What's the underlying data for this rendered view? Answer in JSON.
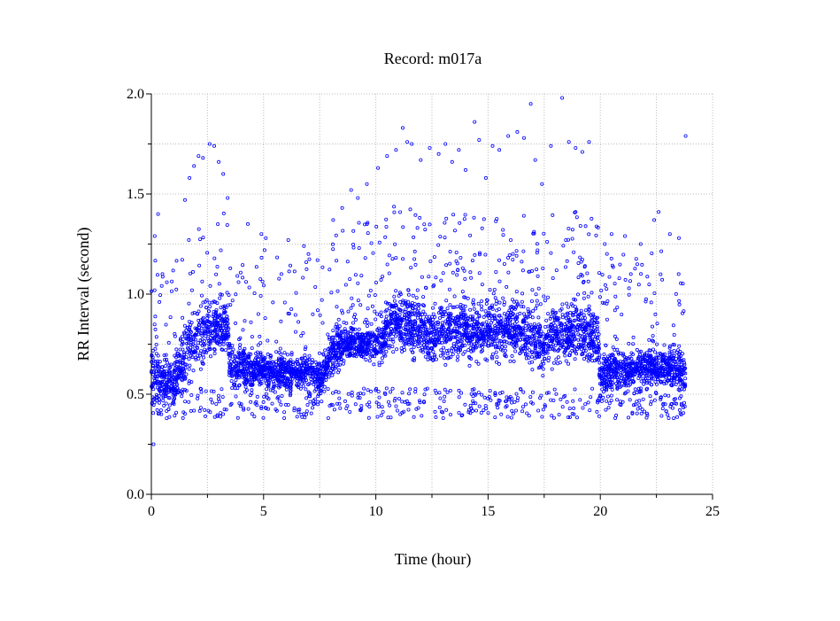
{
  "chart_data": {
    "type": "scatter",
    "title": "Record:  m017a",
    "xlabel": "Time (hour)",
    "ylabel": "RR Interval (second)",
    "xlim": [
      0,
      25
    ],
    "ylim": [
      0,
      2.0
    ],
    "xticks": [
      "0",
      "5",
      "10",
      "15",
      "20",
      "25"
    ],
    "yticks": [
      "0.0",
      "0.5",
      "1.0",
      "1.5",
      "2.0"
    ],
    "grid": true,
    "marker": "open-circle",
    "color": "#0000ff",
    "trend": {
      "note": "median RR (s) vs hour with band half-width",
      "hour": [
        0.0,
        0.5,
        1.0,
        1.5,
        2.0,
        2.5,
        3.0,
        3.4,
        3.5,
        4.0,
        5.0,
        6.0,
        7.0,
        7.6,
        8.0,
        8.5,
        9.0,
        9.5,
        10.0,
        10.4,
        10.5,
        11.0,
        11.5,
        12.0,
        12.5,
        13.0,
        13.5,
        14.0,
        14.5,
        15.0,
        15.5,
        16.0,
        16.5,
        17.0,
        17.5,
        18.0,
        18.5,
        19.0,
        19.5,
        19.9,
        20.0,
        20.5,
        21.0,
        22.0,
        23.0,
        23.8
      ],
      "rr": [
        0.62,
        0.55,
        0.55,
        0.7,
        0.78,
        0.82,
        0.83,
        0.82,
        0.63,
        0.62,
        0.62,
        0.61,
        0.61,
        0.58,
        0.7,
        0.76,
        0.76,
        0.76,
        0.75,
        0.78,
        0.85,
        0.86,
        0.84,
        0.82,
        0.78,
        0.82,
        0.82,
        0.84,
        0.8,
        0.83,
        0.8,
        0.84,
        0.8,
        0.78,
        0.75,
        0.82,
        0.8,
        0.82,
        0.8,
        0.78,
        0.6,
        0.62,
        0.62,
        0.63,
        0.64,
        0.6
      ],
      "spread": [
        0.08,
        0.06,
        0.06,
        0.08,
        0.08,
        0.07,
        0.07,
        0.07,
        0.05,
        0.05,
        0.04,
        0.04,
        0.04,
        0.04,
        0.05,
        0.05,
        0.04,
        0.04,
        0.05,
        0.06,
        0.07,
        0.06,
        0.07,
        0.07,
        0.06,
        0.07,
        0.07,
        0.07,
        0.07,
        0.07,
        0.07,
        0.07,
        0.07,
        0.07,
        0.07,
        0.07,
        0.07,
        0.07,
        0.07,
        0.07,
        0.06,
        0.05,
        0.05,
        0.05,
        0.05,
        0.06
      ]
    },
    "outliers": [
      [
        0.1,
        0.25
      ],
      [
        0.15,
        1.29
      ],
      [
        0.3,
        1.4
      ],
      [
        1.5,
        1.47
      ],
      [
        1.7,
        1.58
      ],
      [
        1.9,
        1.64
      ],
      [
        2.1,
        1.69
      ],
      [
        2.3,
        1.68
      ],
      [
        2.6,
        1.75
      ],
      [
        2.8,
        1.74
      ],
      [
        3.0,
        1.66
      ],
      [
        3.2,
        1.6
      ],
      [
        3.4,
        1.48
      ],
      [
        4.3,
        1.35
      ],
      [
        4.9,
        1.3
      ],
      [
        5.1,
        1.28
      ],
      [
        6.1,
        1.27
      ],
      [
        6.8,
        1.24
      ],
      [
        7.0,
        1.2
      ],
      [
        7.4,
        1.17
      ],
      [
        8.1,
        1.37
      ],
      [
        8.5,
        1.43
      ],
      [
        8.9,
        1.52
      ],
      [
        9.2,
        1.48
      ],
      [
        9.6,
        1.55
      ],
      [
        10.1,
        1.63
      ],
      [
        10.5,
        1.69
      ],
      [
        10.9,
        1.72
      ],
      [
        11.2,
        1.83
      ],
      [
        11.4,
        1.76
      ],
      [
        11.6,
        1.75
      ],
      [
        12.0,
        1.67
      ],
      [
        12.4,
        1.73
      ],
      [
        12.8,
        1.7
      ],
      [
        13.1,
        1.75
      ],
      [
        13.4,
        1.66
      ],
      [
        13.7,
        1.72
      ],
      [
        14.0,
        1.62
      ],
      [
        14.4,
        1.86
      ],
      [
        14.6,
        1.77
      ],
      [
        14.9,
        1.58
      ],
      [
        15.2,
        1.74
      ],
      [
        15.5,
        1.72
      ],
      [
        15.9,
        1.79
      ],
      [
        16.3,
        1.81
      ],
      [
        16.6,
        1.78
      ],
      [
        16.9,
        1.95
      ],
      [
        17.1,
        1.67
      ],
      [
        17.4,
        1.55
      ],
      [
        17.8,
        1.74
      ],
      [
        18.3,
        1.98
      ],
      [
        18.6,
        1.76
      ],
      [
        18.9,
        1.73
      ],
      [
        19.2,
        1.71
      ],
      [
        19.5,
        1.76
      ],
      [
        20.2,
        1.25
      ],
      [
        20.5,
        1.3
      ],
      [
        21.1,
        1.29
      ],
      [
        21.8,
        1.25
      ],
      [
        22.4,
        1.37
      ],
      [
        22.6,
        1.41
      ],
      [
        23.1,
        1.3
      ],
      [
        23.5,
        1.28
      ],
      [
        23.8,
        1.79
      ]
    ]
  }
}
